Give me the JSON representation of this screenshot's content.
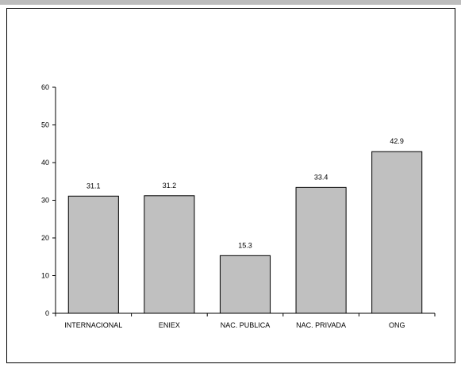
{
  "chart_data": {
    "type": "bar",
    "title": "",
    "xlabel": "",
    "ylabel": "",
    "categories": [
      "INTERNACIONAL",
      "ENIEX",
      "NAC. PUBLICA",
      "NAC. PRIVADA",
      "ONG"
    ],
    "values": [
      31.1,
      31.2,
      15.3,
      33.4,
      42.9
    ],
    "data_labels": [
      "31.1",
      "31.2",
      "15.3",
      "33.4",
      "42.9"
    ],
    "ylim": [
      0,
      60
    ],
    "yticks": [
      0,
      10,
      20,
      30,
      40,
      50,
      60
    ],
    "grid": false,
    "legend": "none",
    "colors": {
      "bar_fill": "#c0c0c0",
      "bar_stroke": "#000000",
      "top_band": "#bdbdbd"
    }
  }
}
